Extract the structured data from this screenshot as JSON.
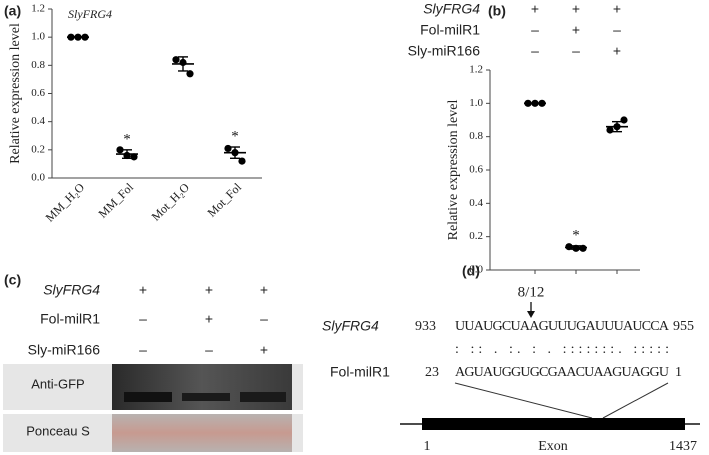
{
  "chart_data": [
    {
      "type": "dot",
      "panel": "(a)",
      "title": "SlyFRG4",
      "ylabel": "Relative expression level",
      "categories": [
        "MM_H₂O",
        "MM_Fol",
        "Mot_H₂O",
        "Mot_Fol"
      ],
      "values": [
        1.0,
        0.17,
        0.81,
        0.18
      ],
      "errors": [
        0,
        0.03,
        0.05,
        0.04
      ],
      "points": [
        [
          1,
          1,
          1
        ],
        [
          0.2,
          0.16,
          0.15
        ],
        [
          0.84,
          0.82,
          0.74
        ],
        [
          0.21,
          0.18,
          0.12
        ]
      ],
      "significance": [
        null,
        "*",
        null,
        "*"
      ],
      "ylim": [
        0,
        1.2
      ],
      "yticks": [
        {
          "value": 0,
          "label": "0.0"
        },
        0.2,
        0.4,
        0.6,
        0.8,
        {
          "value": 1,
          "label": "1.0"
        },
        1.2
      ],
      "color": "#000000"
    },
    {
      "type": "dot",
      "panel": "(b)",
      "ylabel": "Relative expression level",
      "categories": [
        null,
        null,
        null
      ],
      "values": [
        1.0,
        0.135,
        0.86
      ],
      "errors": [
        0,
        0.01,
        0.03
      ],
      "points": [
        [
          1,
          1,
          1
        ],
        [
          0.14,
          0.13,
          0.13
        ],
        [
          0.84,
          0.86,
          0.9
        ]
      ],
      "significance": [
        null,
        "*",
        null
      ],
      "ylim": [
        0,
        1.2
      ],
      "yticks": [
        {
          "value": 0,
          "label": "0.0"
        },
        0.2,
        0.4,
        0.6,
        0.8,
        {
          "value": 1,
          "label": "1.0"
        },
        1.2
      ],
      "color": "#000000",
      "treatments": [
        {
          "name": "SlyFRG4",
          "signs": [
            "+",
            "+",
            "+"
          ]
        },
        {
          "name": "Fol-milR1",
          "signs": [
            "–",
            "+",
            "–"
          ]
        },
        {
          "name": "Sly-miR166",
          "signs": [
            "–",
            "–",
            "+"
          ]
        }
      ]
    }
  ],
  "blot": {
    "panel": "(c)",
    "treatments": [
      {
        "name": "SlyFRG4",
        "signs": [
          "+",
          "+",
          "+"
        ]
      },
      {
        "name": "Fol-milR1",
        "signs": [
          "–",
          "+",
          "–"
        ]
      },
      {
        "name": "Sly-miR166",
        "signs": [
          "–",
          "–",
          "+"
        ]
      }
    ],
    "bands": [
      "Anti-GFP",
      "Ponceau S"
    ]
  },
  "alignment": {
    "panel": "(d)",
    "ratio": "8/12",
    "target": {
      "name": "SlyFRG4",
      "start": "933",
      "sequence": "UUAUGCUAAGUUUGAUUUAUCCA",
      "end": "955"
    },
    "pairing": ": :: . :. : . :::::::. :::::",
    "mirna": {
      "name": "Fol-milR1",
      "start": "23",
      "sequence": "AGUAUGGUGCGAACUAAGUAGGU",
      "end": "1"
    },
    "gene": {
      "start": "1",
      "label": "Exon",
      "end": "1437"
    }
  }
}
